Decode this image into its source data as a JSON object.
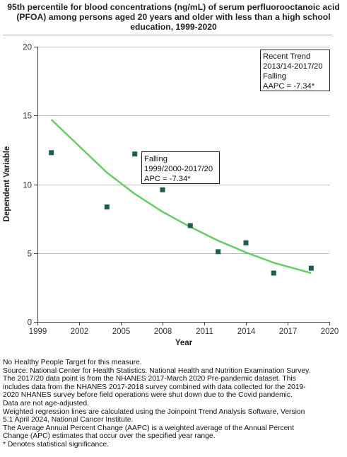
{
  "title": "95th percentile for blood concentrations (ng/mL) of serum perfluorooctanoic acid\n(PFOA) among persons aged 20 years and older with less than a high school\neducation, 1999-2020",
  "annotations": {
    "recent": [
      "Recent Trend",
      "2013/14-2017/20",
      "Falling",
      "AAPC = -7.34*"
    ],
    "overall": [
      "Falling",
      "1999/2000-2017/20",
      "APC = -7.34*"
    ]
  },
  "footnotes": [
    "No Healthy People Target for this measure.",
    "Source: National Center for Health Statistics. National Health and Nutrition Examination Survey.",
    "The 2017/20 data point is from the NHANES 2017-March 2020 Pre-pandemic dataset. This",
    "includes data from the NHANES 2017-2018 survey combined with data collected for the 2019-",
    "2020 NHANES survey before field operations were shut down due to the Covid pandemic.",
    "Data are not age-adjusted.",
    "Weighted regression lines are calculated using the Joinpoint Trend Analysis Software, Version",
    "5.1 April 2024, National Cancer Institute.",
    "The Average Annual Percent Change (AAPC) is a weighted average of the Annual Percent",
    "Change (APC) estimates that occur over the specified year range.",
    "* Denotes statistical significance."
  ],
  "colors": {
    "marker": "#1f5c55",
    "trend_line": "#66cc66",
    "grid": "#b8b8b8",
    "axis": "#444444"
  },
  "chart_data": {
    "type": "scatter",
    "title": "95th percentile for blood concentrations (ng/mL) of serum perfluorooctanoic acid (PFOA) among persons aged 20 years and older with less than a high school education, 1999-2020",
    "xlabel": "Year",
    "ylabel": "Dependent Variable",
    "xlim": [
      1999,
      2020
    ],
    "ylim": [
      0,
      20
    ],
    "xticks": [
      1999,
      2002,
      2005,
      2008,
      2011,
      2014,
      2017,
      2020
    ],
    "yticks": [
      0,
      5,
      10,
      15,
      20
    ],
    "grid": true,
    "series": [
      {
        "type": "scatter",
        "x": [
          2000,
          2004,
          2006,
          2008,
          2010,
          2012,
          2014,
          2016,
          2018.7
        ],
        "y": [
          12.3,
          8.35,
          12.2,
          9.6,
          7.0,
          5.1,
          5.75,
          3.55,
          3.9
        ]
      },
      {
        "type": "line",
        "x": [
          2000,
          2004,
          2006,
          2008,
          2010,
          2012,
          2014,
          2016,
          2018.7
        ],
        "y": [
          14.7,
          10.85,
          9.3,
          8.0,
          6.9,
          5.9,
          5.05,
          4.3,
          3.55
        ]
      }
    ]
  }
}
